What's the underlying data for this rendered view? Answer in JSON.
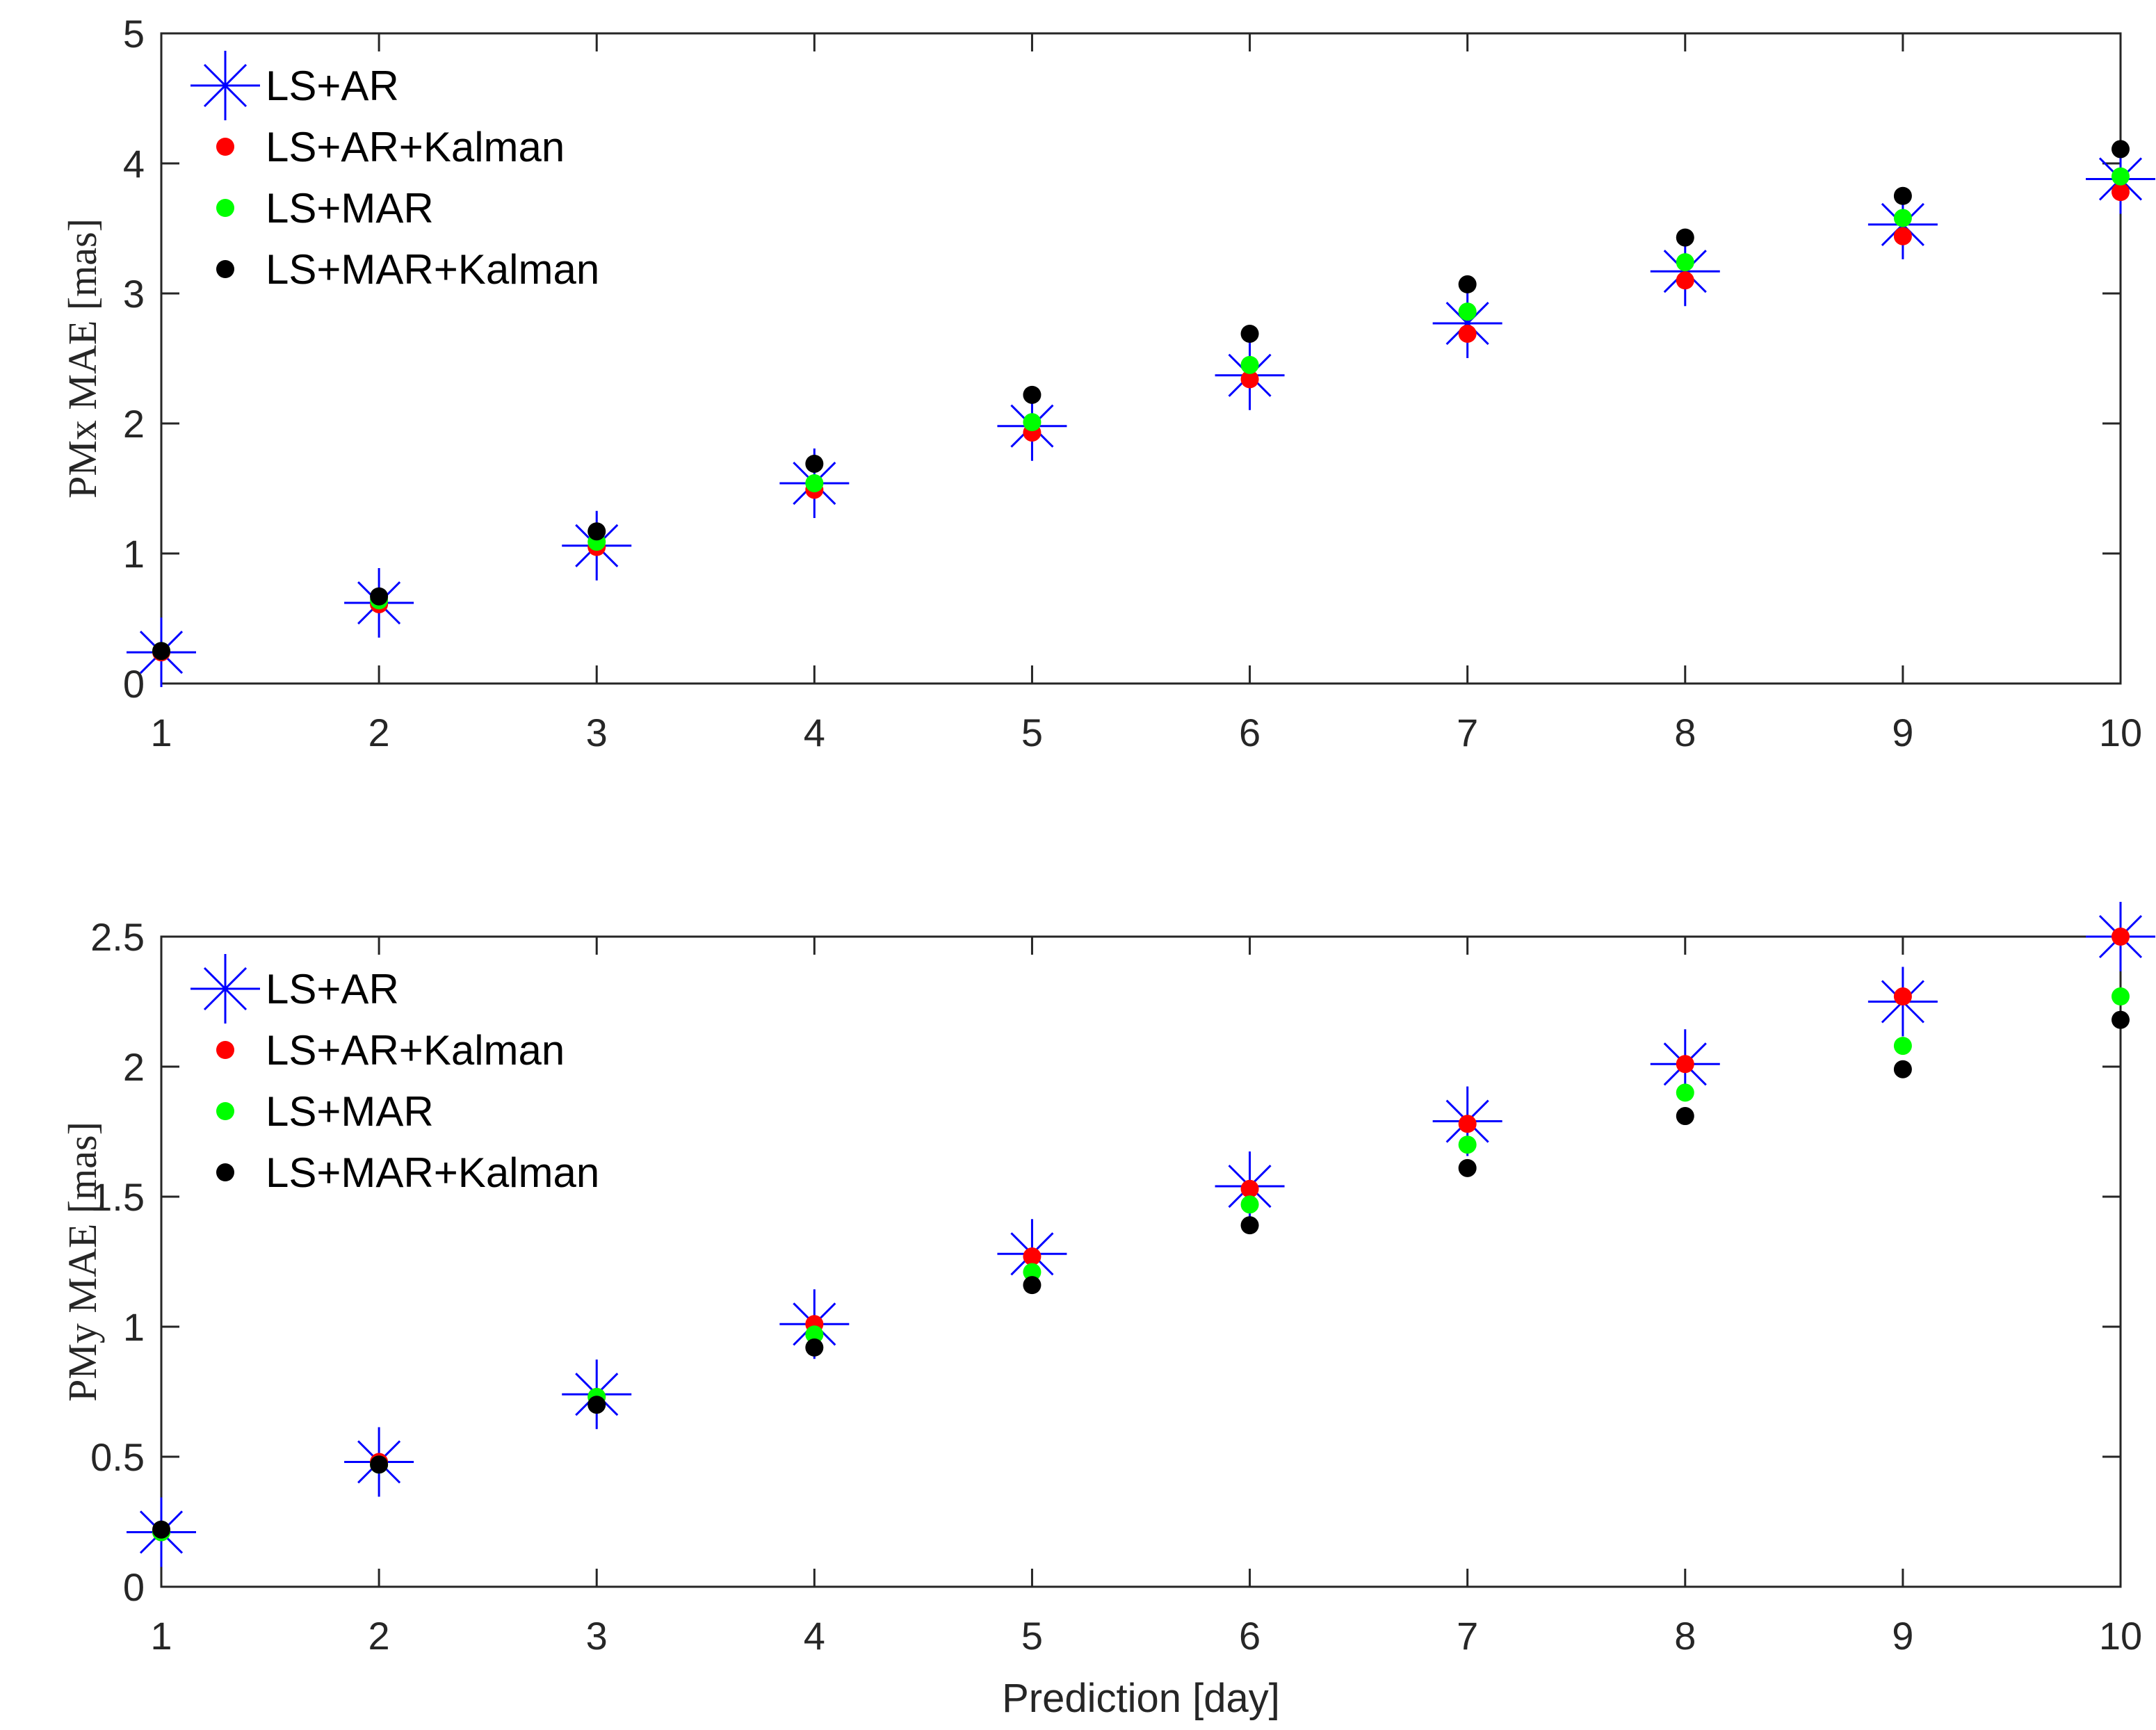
{
  "chart_data": [
    {
      "type": "scatter",
      "title": "",
      "xlabel": "",
      "ylabel": "PMx MAE [mas]",
      "xlim": [
        1,
        10
      ],
      "ylim": [
        0,
        5
      ],
      "xticks": [
        "1",
        "2",
        "3",
        "4",
        "5",
        "6",
        "7",
        "8",
        "9",
        "10"
      ],
      "yticks": [
        "0",
        "1",
        "2",
        "3",
        "4",
        "5"
      ],
      "x": [
        1,
        2,
        3,
        4,
        5,
        6,
        7,
        8,
        9,
        10
      ],
      "legend_position": "top-left",
      "series": [
        {
          "name": "LS+AR",
          "marker": "asterisk",
          "color": "#0000ff",
          "values": [
            0.24,
            0.62,
            1.06,
            1.54,
            1.98,
            2.37,
            2.77,
            3.17,
            3.53,
            3.88
          ]
        },
        {
          "name": "LS+AR+Kalman",
          "marker": "dot",
          "color": "#ff0000",
          "values": [
            0.24,
            0.61,
            1.05,
            1.49,
            1.93,
            2.34,
            2.69,
            3.1,
            3.44,
            3.78
          ]
        },
        {
          "name": "LS+MAR",
          "marker": "dot",
          "color": "#00ff00",
          "values": [
            0.25,
            0.64,
            1.09,
            1.54,
            2.01,
            2.45,
            2.86,
            3.24,
            3.58,
            3.9
          ]
        },
        {
          "name": "LS+MAR+Kalman",
          "marker": "dot",
          "color": "#000000",
          "values": [
            0.25,
            0.67,
            1.17,
            1.69,
            2.22,
            2.69,
            3.07,
            3.43,
            3.75,
            4.11
          ]
        }
      ]
    },
    {
      "type": "scatter",
      "title": "",
      "xlabel": "Prediction [day]",
      "ylabel": "PMy MAE [mas]",
      "xlim": [
        1,
        10
      ],
      "ylim": [
        0,
        2.5
      ],
      "xticks": [
        "1",
        "2",
        "3",
        "4",
        "5",
        "6",
        "7",
        "8",
        "9",
        "10"
      ],
      "yticks": [
        "0",
        "0.5",
        "1",
        "1.5",
        "2",
        "2.5"
      ],
      "x": [
        1,
        2,
        3,
        4,
        5,
        6,
        7,
        8,
        9,
        10
      ],
      "legend_position": "top-left",
      "series": [
        {
          "name": "LS+AR",
          "marker": "asterisk",
          "color": "#0000ff",
          "values": [
            0.21,
            0.48,
            0.74,
            1.01,
            1.28,
            1.54,
            1.79,
            2.01,
            2.25,
            2.5
          ]
        },
        {
          "name": "LS+AR+Kalman",
          "marker": "dot",
          "color": "#ff0000",
          "values": [
            0.21,
            0.48,
            0.73,
            1.01,
            1.27,
            1.53,
            1.78,
            2.01,
            2.27,
            2.5
          ]
        },
        {
          "name": "LS+MAR",
          "marker": "dot",
          "color": "#00ff00",
          "values": [
            0.21,
            0.47,
            0.73,
            0.97,
            1.21,
            1.47,
            1.7,
            1.9,
            2.08,
            2.27
          ]
        },
        {
          "name": "LS+MAR+Kalman",
          "marker": "dot",
          "color": "#000000",
          "values": [
            0.22,
            0.47,
            0.7,
            0.92,
            1.16,
            1.39,
            1.61,
            1.81,
            1.99,
            2.18
          ]
        }
      ]
    }
  ]
}
